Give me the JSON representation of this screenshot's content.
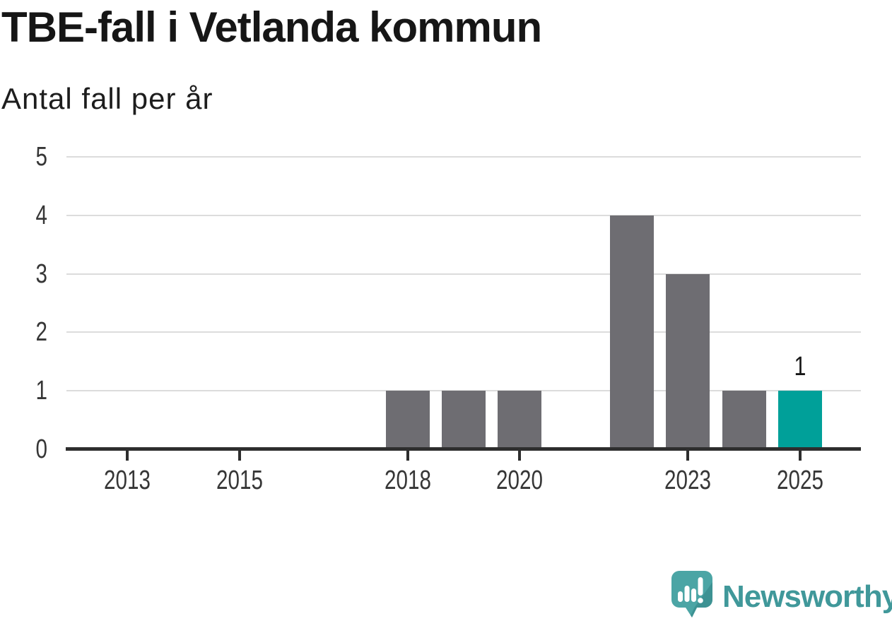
{
  "chart_data": {
    "type": "bar",
    "title": "TBE-fall i Vetlanda kommun",
    "subtitle": "Antal fall per år",
    "categories": [
      2013,
      2014,
      2015,
      2016,
      2017,
      2018,
      2019,
      2020,
      2021,
      2022,
      2023,
      2024,
      2025
    ],
    "values": [
      0,
      0,
      0,
      0,
      0,
      1,
      1,
      1,
      0,
      4,
      3,
      1,
      1
    ],
    "highlight_category": 2025,
    "data_labels": [
      {
        "category": 2025,
        "text": "1"
      }
    ],
    "y_ticks": [
      0,
      1,
      2,
      3,
      4,
      5
    ],
    "x_tick_labels": [
      2013,
      2015,
      2018,
      2020,
      2023,
      2025
    ],
    "ylim": [
      0,
      5
    ],
    "grid": "horizontal",
    "legend": "none",
    "colors": {
      "bar": "#6e6d72",
      "highlight_bar": "#00a099",
      "gridline": "#dcdcdc",
      "axis_line": "#2e2e2e",
      "tick_label": "#363636",
      "data_label": "#161616"
    }
  },
  "footer": {
    "logo_text": "Newsworthy",
    "logo_text_color": "#40989a",
    "logo_icon": "newsworthy-speech-bubble-bar-chart-icon",
    "logo_icon_color": "#4ba5a5"
  }
}
